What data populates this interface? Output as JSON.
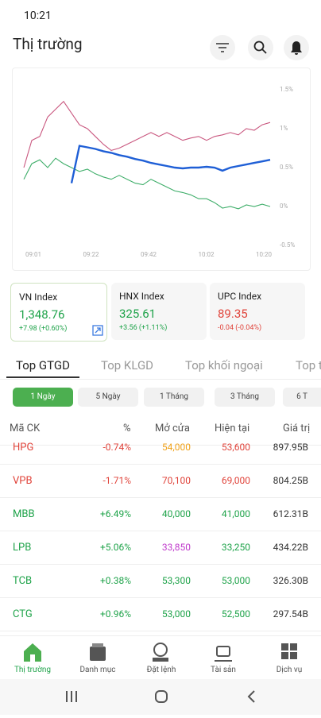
{
  "status": {
    "time": "10:21"
  },
  "header": {
    "title": "Thị trường"
  },
  "chart": {
    "type": "line",
    "xlabels": [
      "09:01",
      "09:22",
      "09:42",
      "10:02",
      "10:20"
    ],
    "ylim": [
      -0.5,
      1.5
    ],
    "yticks": [
      {
        "value": 1.5,
        "label": "1.5%"
      },
      {
        "value": 1,
        "label": "1%"
      },
      {
        "value": 0.5,
        "label": "0.5%"
      },
      {
        "value": 0,
        "label": "0%"
      },
      {
        "value": -0.5,
        "label": "-0.5%"
      }
    ],
    "series": [
      {
        "color": "#c9577f",
        "values": [
          0.5,
          0.85,
          0.9,
          1.15,
          1.25,
          1.35,
          1.2,
          1.05,
          1.0,
          0.9,
          0.8,
          0.72,
          0.75,
          0.8,
          0.85,
          0.9,
          0.95,
          0.9,
          0.95,
          0.9,
          0.85,
          0.88,
          0.9,
          0.85,
          0.9,
          0.92,
          0.95,
          0.92,
          1.0,
          0.98,
          1.05,
          1.08
        ]
      },
      {
        "color": "#3fae6a",
        "values": [
          0.35,
          0.55,
          0.6,
          0.5,
          0.62,
          0.55,
          0.5,
          0.45,
          0.48,
          0.42,
          0.38,
          0.35,
          0.4,
          0.35,
          0.3,
          0.28,
          0.35,
          0.3,
          0.25,
          0.2,
          0.18,
          0.15,
          0.1,
          0.1,
          0.05,
          -0.02,
          0.0,
          -0.03,
          0.02,
          0.0,
          0.03,
          0.0
        ]
      },
      {
        "color": "#1f5fd6",
        "values": [
          null,
          null,
          null,
          null,
          null,
          null,
          0.3,
          0.78,
          0.76,
          0.74,
          0.71,
          0.69,
          0.66,
          0.64,
          0.61,
          0.59,
          0.56,
          0.54,
          0.52,
          0.5,
          0.49,
          0.5,
          0.5,
          0.51,
          0.5,
          0.46,
          0.5,
          0.52,
          0.54,
          0.56,
          0.58,
          0.6
        ]
      }
    ]
  },
  "indices": [
    {
      "name": "VN Index",
      "value": "1,348.76",
      "change": "+7.98 (+0.60%)"
    },
    {
      "name": "HNX Index",
      "value": "325.61",
      "change": "+3.56 (+1.11%)"
    },
    {
      "name": "UPC Index",
      "value": "89.35",
      "change": "-0.04 (-0.04%)"
    }
  ],
  "tabs": [
    "Top GTGD",
    "Top KLGD",
    "Top khối ngoại",
    "Top t"
  ],
  "periods": [
    "1 Ngày",
    "5 Ngày",
    "1 Tháng",
    "3 Tháng",
    "6 T"
  ],
  "table": {
    "columns": [
      "Mã CK",
      "%",
      "Mở cửa",
      "Hiện tại",
      "Giá trị"
    ],
    "rows": [
      [
        "HPG",
        "-0.74%",
        "54,000",
        "53,600",
        "897.95B"
      ],
      [
        "VPB",
        "-1.71%",
        "70,100",
        "69,000",
        "804.25B"
      ],
      [
        "MBB",
        "+6.49%",
        "40,000",
        "41,000",
        "612.31B"
      ],
      [
        "LPB",
        "+5.06%",
        "33,850",
        "33,250",
        "434.22B"
      ],
      [
        "TCB",
        "+0.38%",
        "53,300",
        "53,000",
        "326.30B"
      ],
      [
        "CTG",
        "+0.96%",
        "53,000",
        "52,500",
        "297.54B"
      ]
    ]
  },
  "nav": [
    "Thị trường",
    "Danh mục",
    "Đặt lệnh",
    "Tài sản",
    "Dịch vụ"
  ]
}
